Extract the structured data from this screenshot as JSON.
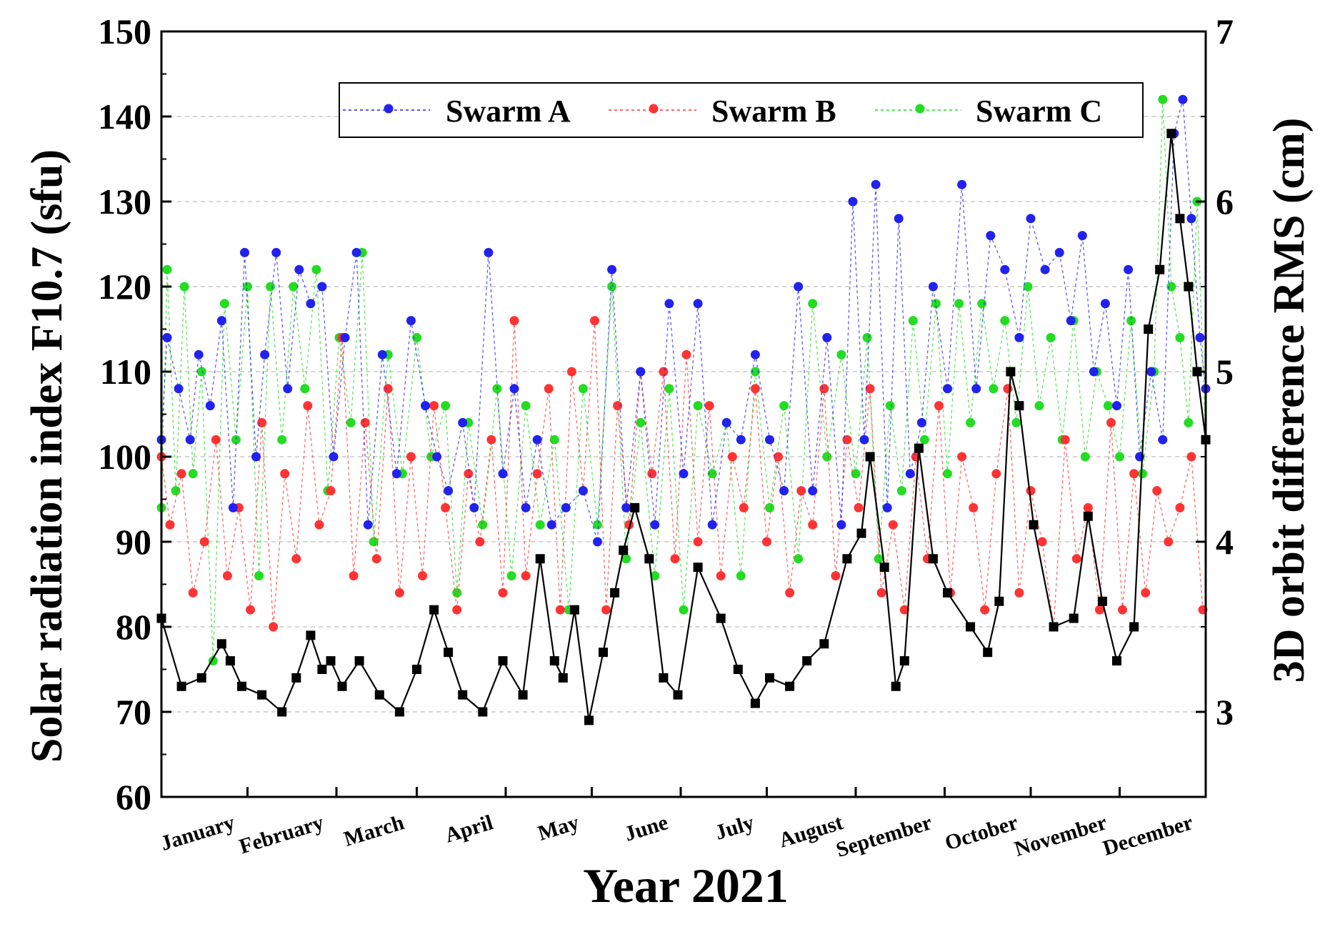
{
  "chart_data": {
    "type": "line",
    "title": "",
    "xlabel": "Year 2021",
    "ylabel_left": "Solar radiation index F10.7 (sfu)",
    "ylabel_right": "3D orbit difference RMS (cm)",
    "ylim_left": [
      60,
      150
    ],
    "ylim_right": [
      2.5,
      7
    ],
    "yticks_left": [
      60,
      70,
      80,
      90,
      100,
      110,
      120,
      130,
      140,
      150
    ],
    "yticks_right": [
      3,
      4,
      5,
      6,
      7
    ],
    "xlim_day": [
      1,
      365
    ],
    "months": [
      "January",
      "February",
      "March",
      "April",
      "May",
      "June",
      "July",
      "August",
      "September",
      "October",
      "November",
      "December"
    ],
    "month_start_day": [
      1,
      32,
      60,
      91,
      121,
      152,
      182,
      213,
      244,
      274,
      305,
      335
    ],
    "grid": "horizontal dashed",
    "legend_position": "top",
    "legend": [
      "Swarm A",
      "Swarm B",
      "Swarm C"
    ],
    "colors": {
      "swarm_a": "#2222ee",
      "swarm_b": "#ff3333",
      "swarm_c": "#22dd22",
      "f107": "#000000"
    },
    "f107_series": {
      "name": "F10.7",
      "axis": "left",
      "day": [
        1,
        8,
        15,
        22,
        25,
        29,
        36,
        43,
        48,
        53,
        57,
        60,
        64,
        70,
        77,
        84,
        90,
        96,
        101,
        106,
        113,
        120,
        127,
        133,
        138,
        141,
        145,
        150,
        155,
        159,
        162,
        166,
        171,
        176,
        181,
        188,
        196,
        202,
        208,
        213,
        220,
        226,
        232,
        240,
        245,
        248,
        253,
        257,
        260,
        265,
        270,
        275,
        283,
        289,
        293,
        297,
        300,
        305,
        312,
        319,
        324,
        329,
        334,
        340,
        345,
        349,
        353,
        356,
        359,
        362,
        365
      ],
      "value": [
        81,
        73,
        74,
        78,
        76,
        73,
        72,
        70,
        74,
        79,
        75,
        76,
        73,
        76,
        72,
        70,
        75,
        82,
        77,
        72,
        70,
        76,
        72,
        88,
        76,
        74,
        82,
        69,
        77,
        84,
        89,
        94,
        88,
        74,
        72,
        87,
        81,
        75,
        71,
        74,
        73,
        76,
        78,
        88,
        91,
        100,
        87,
        73,
        76,
        101,
        88,
        84,
        80,
        77,
        83,
        110,
        106,
        92,
        80,
        81,
        93,
        83,
        76,
        80,
        115,
        122,
        138,
        128,
        120,
        110,
        102
      ]
    },
    "swarm_a": {
      "axis": "right",
      "day": [
        1,
        3,
        7,
        11,
        14,
        18,
        22,
        26,
        30,
        34,
        37,
        41,
        45,
        49,
        53,
        57,
        61,
        65,
        69,
        73,
        78,
        83,
        88,
        93,
        97,
        101,
        106,
        110,
        115,
        120,
        124,
        128,
        132,
        137,
        142,
        148,
        153,
        158,
        163,
        168,
        173,
        178,
        183,
        188,
        193,
        198,
        203,
        208,
        213,
        218,
        223,
        228,
        233,
        238,
        242,
        246,
        250,
        254,
        258,
        262,
        266,
        270,
        275,
        280,
        285,
        290,
        295,
        300,
        304,
        309,
        314,
        318,
        322,
        326,
        330,
        334,
        338,
        342,
        346,
        350,
        354,
        357,
        360,
        363,
        365
      ],
      "value": [
        4.6,
        5.2,
        4.9,
        4.6,
        5.1,
        4.8,
        5.3,
        4.2,
        5.7,
        4.5,
        5.1,
        5.7,
        4.9,
        5.6,
        5.4,
        5.5,
        4.5,
        5.2,
        5.7,
        4.1,
        5.1,
        4.4,
        5.3,
        4.8,
        4.5,
        4.3,
        4.7,
        4.2,
        5.7,
        4.4,
        4.9,
        4.2,
        4.6,
        4.1,
        4.2,
        4.3,
        4.0,
        5.6,
        4.2,
        5.0,
        4.1,
        5.4,
        4.4,
        5.4,
        4.1,
        4.7,
        4.6,
        5.1,
        4.6,
        4.3,
        5.5,
        4.3,
        5.2,
        4.1,
        6.0,
        4.6,
        6.1,
        4.2,
        5.9,
        4.4,
        4.7,
        5.5,
        4.9,
        6.1,
        4.9,
        5.8,
        5.6,
        5.2,
        5.9,
        5.6,
        5.7,
        5.3,
        5.8,
        5.0,
        5.4,
        4.8,
        5.6,
        4.5,
        5.0,
        4.6,
        6.4,
        6.6,
        5.9,
        5.2,
        4.9
      ]
    },
    "swarm_b": {
      "axis": "right",
      "day": [
        1,
        4,
        8,
        12,
        16,
        20,
        24,
        28,
        32,
        36,
        40,
        44,
        48,
        52,
        56,
        60,
        64,
        68,
        72,
        76,
        80,
        84,
        88,
        92,
        96,
        100,
        104,
        108,
        112,
        116,
        120,
        124,
        128,
        132,
        136,
        140,
        144,
        148,
        152,
        156,
        160,
        164,
        168,
        172,
        176,
        180,
        184,
        188,
        192,
        196,
        200,
        204,
        208,
        212,
        216,
        220,
        224,
        228,
        232,
        236,
        240,
        244,
        248,
        252,
        256,
        260,
        264,
        268,
        272,
        276,
        280,
        284,
        288,
        292,
        296,
        300,
        304,
        308,
        312,
        316,
        320,
        324,
        328,
        332,
        336,
        340,
        344,
        348,
        352,
        356,
        360,
        364
      ],
      "value": [
        4.5,
        4.1,
        4.4,
        3.7,
        4.0,
        4.6,
        3.8,
        4.2,
        3.6,
        4.7,
        3.5,
        4.4,
        3.9,
        4.8,
        4.1,
        4.3,
        5.2,
        3.8,
        4.7,
        3.9,
        4.9,
        3.7,
        4.5,
        3.8,
        4.8,
        4.2,
        3.6,
        4.4,
        4.0,
        4.6,
        3.7,
        5.3,
        3.8,
        4.4,
        4.9,
        3.6,
        5.0,
        4.3,
        5.3,
        3.6,
        4.8,
        4.1,
        5.0,
        4.4,
        5.0,
        3.9,
        5.1,
        4.0,
        4.8,
        3.8,
        4.5,
        4.2,
        4.9,
        4.0,
        4.5,
        3.7,
        4.3,
        4.1,
        4.9,
        3.8,
        4.6,
        4.2,
        4.9,
        3.7,
        4.1,
        3.6,
        4.5,
        3.9,
        4.8,
        3.7,
        4.5,
        4.2,
        3.6,
        4.4,
        4.9,
        3.7,
        4.3,
        4.0,
        3.5,
        4.6,
        3.9,
        4.2,
        3.6,
        4.7,
        3.6,
        4.4,
        3.7,
        4.3,
        4.0,
        4.2,
        4.5,
        3.6
      ]
    },
    "swarm_c": {
      "axis": "right",
      "day": [
        1,
        3,
        6,
        9,
        12,
        15,
        19,
        23,
        27,
        31,
        35,
        39,
        43,
        47,
        51,
        55,
        59,
        63,
        67,
        71,
        75,
        80,
        85,
        90,
        95,
        100,
        104,
        108,
        113,
        118,
        123,
        128,
        133,
        138,
        143,
        148,
        153,
        158,
        163,
        168,
        173,
        178,
        183,
        188,
        193,
        198,
        203,
        208,
        213,
        218,
        223,
        228,
        233,
        238,
        243,
        247,
        251,
        255,
        259,
        263,
        267,
        271,
        275,
        279,
        283,
        287,
        291,
        295,
        299,
        303,
        307,
        311,
        315,
        319,
        323,
        327,
        331,
        335,
        339,
        343,
        347,
        350,
        353,
        356,
        359,
        362,
        365
      ],
      "value": [
        4.2,
        5.6,
        4.3,
        5.5,
        4.4,
        5.0,
        3.3,
        5.4,
        4.6,
        5.5,
        3.8,
        5.5,
        4.6,
        5.5,
        4.9,
        5.6,
        4.3,
        5.2,
        4.7,
        5.7,
        4.0,
        5.1,
        4.4,
        5.2,
        4.5,
        4.8,
        3.7,
        4.7,
        4.1,
        4.9,
        3.8,
        4.8,
        4.1,
        4.6,
        3.6,
        4.9,
        4.1,
        5.5,
        3.9,
        4.7,
        3.8,
        4.9,
        3.6,
        4.8,
        4.4,
        4.7,
        3.8,
        5.0,
        4.2,
        4.8,
        3.9,
        5.4,
        4.5,
        5.1,
        4.4,
        5.2,
        3.9,
        4.8,
        4.3,
        5.3,
        4.6,
        5.4,
        4.4,
        5.4,
        4.7,
        5.4,
        4.9,
        5.3,
        4.7,
        5.5,
        4.8,
        5.2,
        4.6,
        5.3,
        4.5,
        5.0,
        4.8,
        4.5,
        5.3,
        4.4,
        5.0,
        6.6,
        5.5,
        5.2,
        4.7,
        6.0,
        4.6
      ]
    }
  }
}
